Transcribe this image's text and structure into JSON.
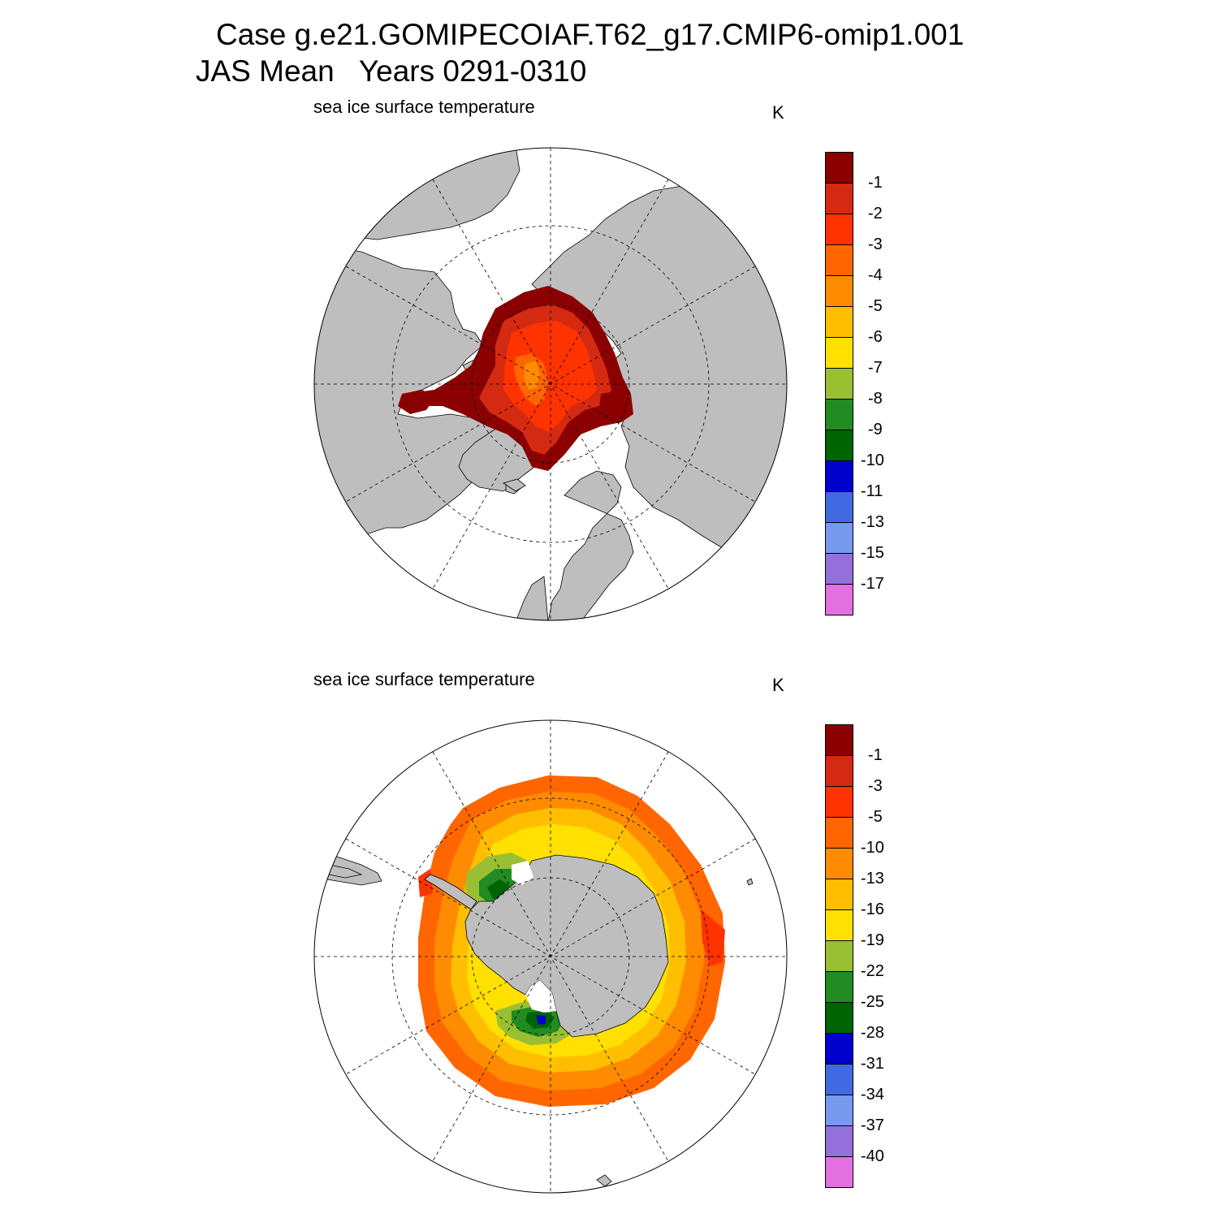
{
  "title": {
    "line1": "Case g.e21.GOMIPECOIAF.T62_g17.CMIP6-omip1.001",
    "line2": "JAS Mean   Years 0291-0310"
  },
  "panels": [
    {
      "id": "north",
      "variable": "sea ice surface temperature",
      "unit": "K",
      "hemisphere": "northern",
      "colorbar": {
        "colors": [
          "#8b0000",
          "#d42a12",
          "#ff3300",
          "#ff6600",
          "#ff8c00",
          "#ffbf00",
          "#ffe000",
          "#99bf33",
          "#228b22",
          "#006400",
          "#0000cd",
          "#4169e1",
          "#7799ee",
          "#9370db",
          "#e270e0"
        ],
        "labels": [
          "-1",
          "-2",
          "-3",
          "-4",
          "-5",
          "-6",
          "-7",
          "-8",
          "-9",
          "-10",
          "-11",
          "-13",
          "-15",
          "-17"
        ]
      }
    },
    {
      "id": "south",
      "variable": "sea ice surface temperature",
      "unit": "K",
      "hemisphere": "southern",
      "colorbar": {
        "colors": [
          "#8b0000",
          "#d42a12",
          "#ff3300",
          "#ff6600",
          "#ff8c00",
          "#ffbf00",
          "#ffe000",
          "#99bf33",
          "#228b22",
          "#006400",
          "#0000cd",
          "#4169e1",
          "#7799ee",
          "#9370db",
          "#e270e0"
        ],
        "labels": [
          "-1",
          "-3",
          "-5",
          "-10",
          "-13",
          "-16",
          "-19",
          "-22",
          "-25",
          "-28",
          "-31",
          "-34",
          "-37",
          "-40"
        ]
      }
    }
  ],
  "colors": {
    "land": "#bebebe",
    "ocean": "#ffffff",
    "grid": "#000000"
  }
}
